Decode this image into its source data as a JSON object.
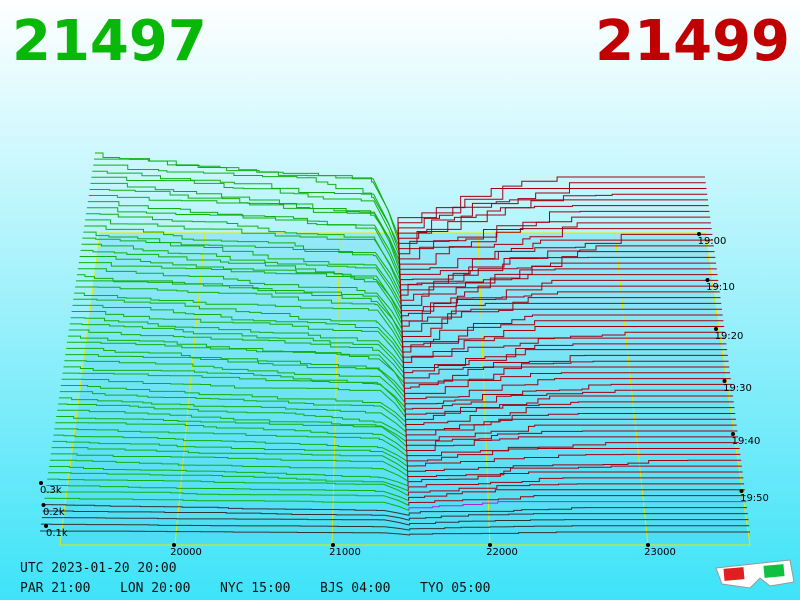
{
  "header": {
    "bid": "21497",
    "ask": "21499"
  },
  "depth_labels": [
    "0.3k",
    "0.2k",
    "0.1k"
  ],
  "price_labels": [
    "20000",
    "21000",
    "22000",
    "23000"
  ],
  "time_labels": [
    "19:00",
    "19:10",
    "19:20",
    "19:30",
    "19:40",
    "19:50"
  ],
  "clock": {
    "utc": "UTC 2023-01-20 20:00",
    "zones": [
      "PAR 21:00",
      "LON 20:00",
      "NYC 15:00",
      "BJS 04:00",
      "TYO 05:00"
    ]
  }
}
